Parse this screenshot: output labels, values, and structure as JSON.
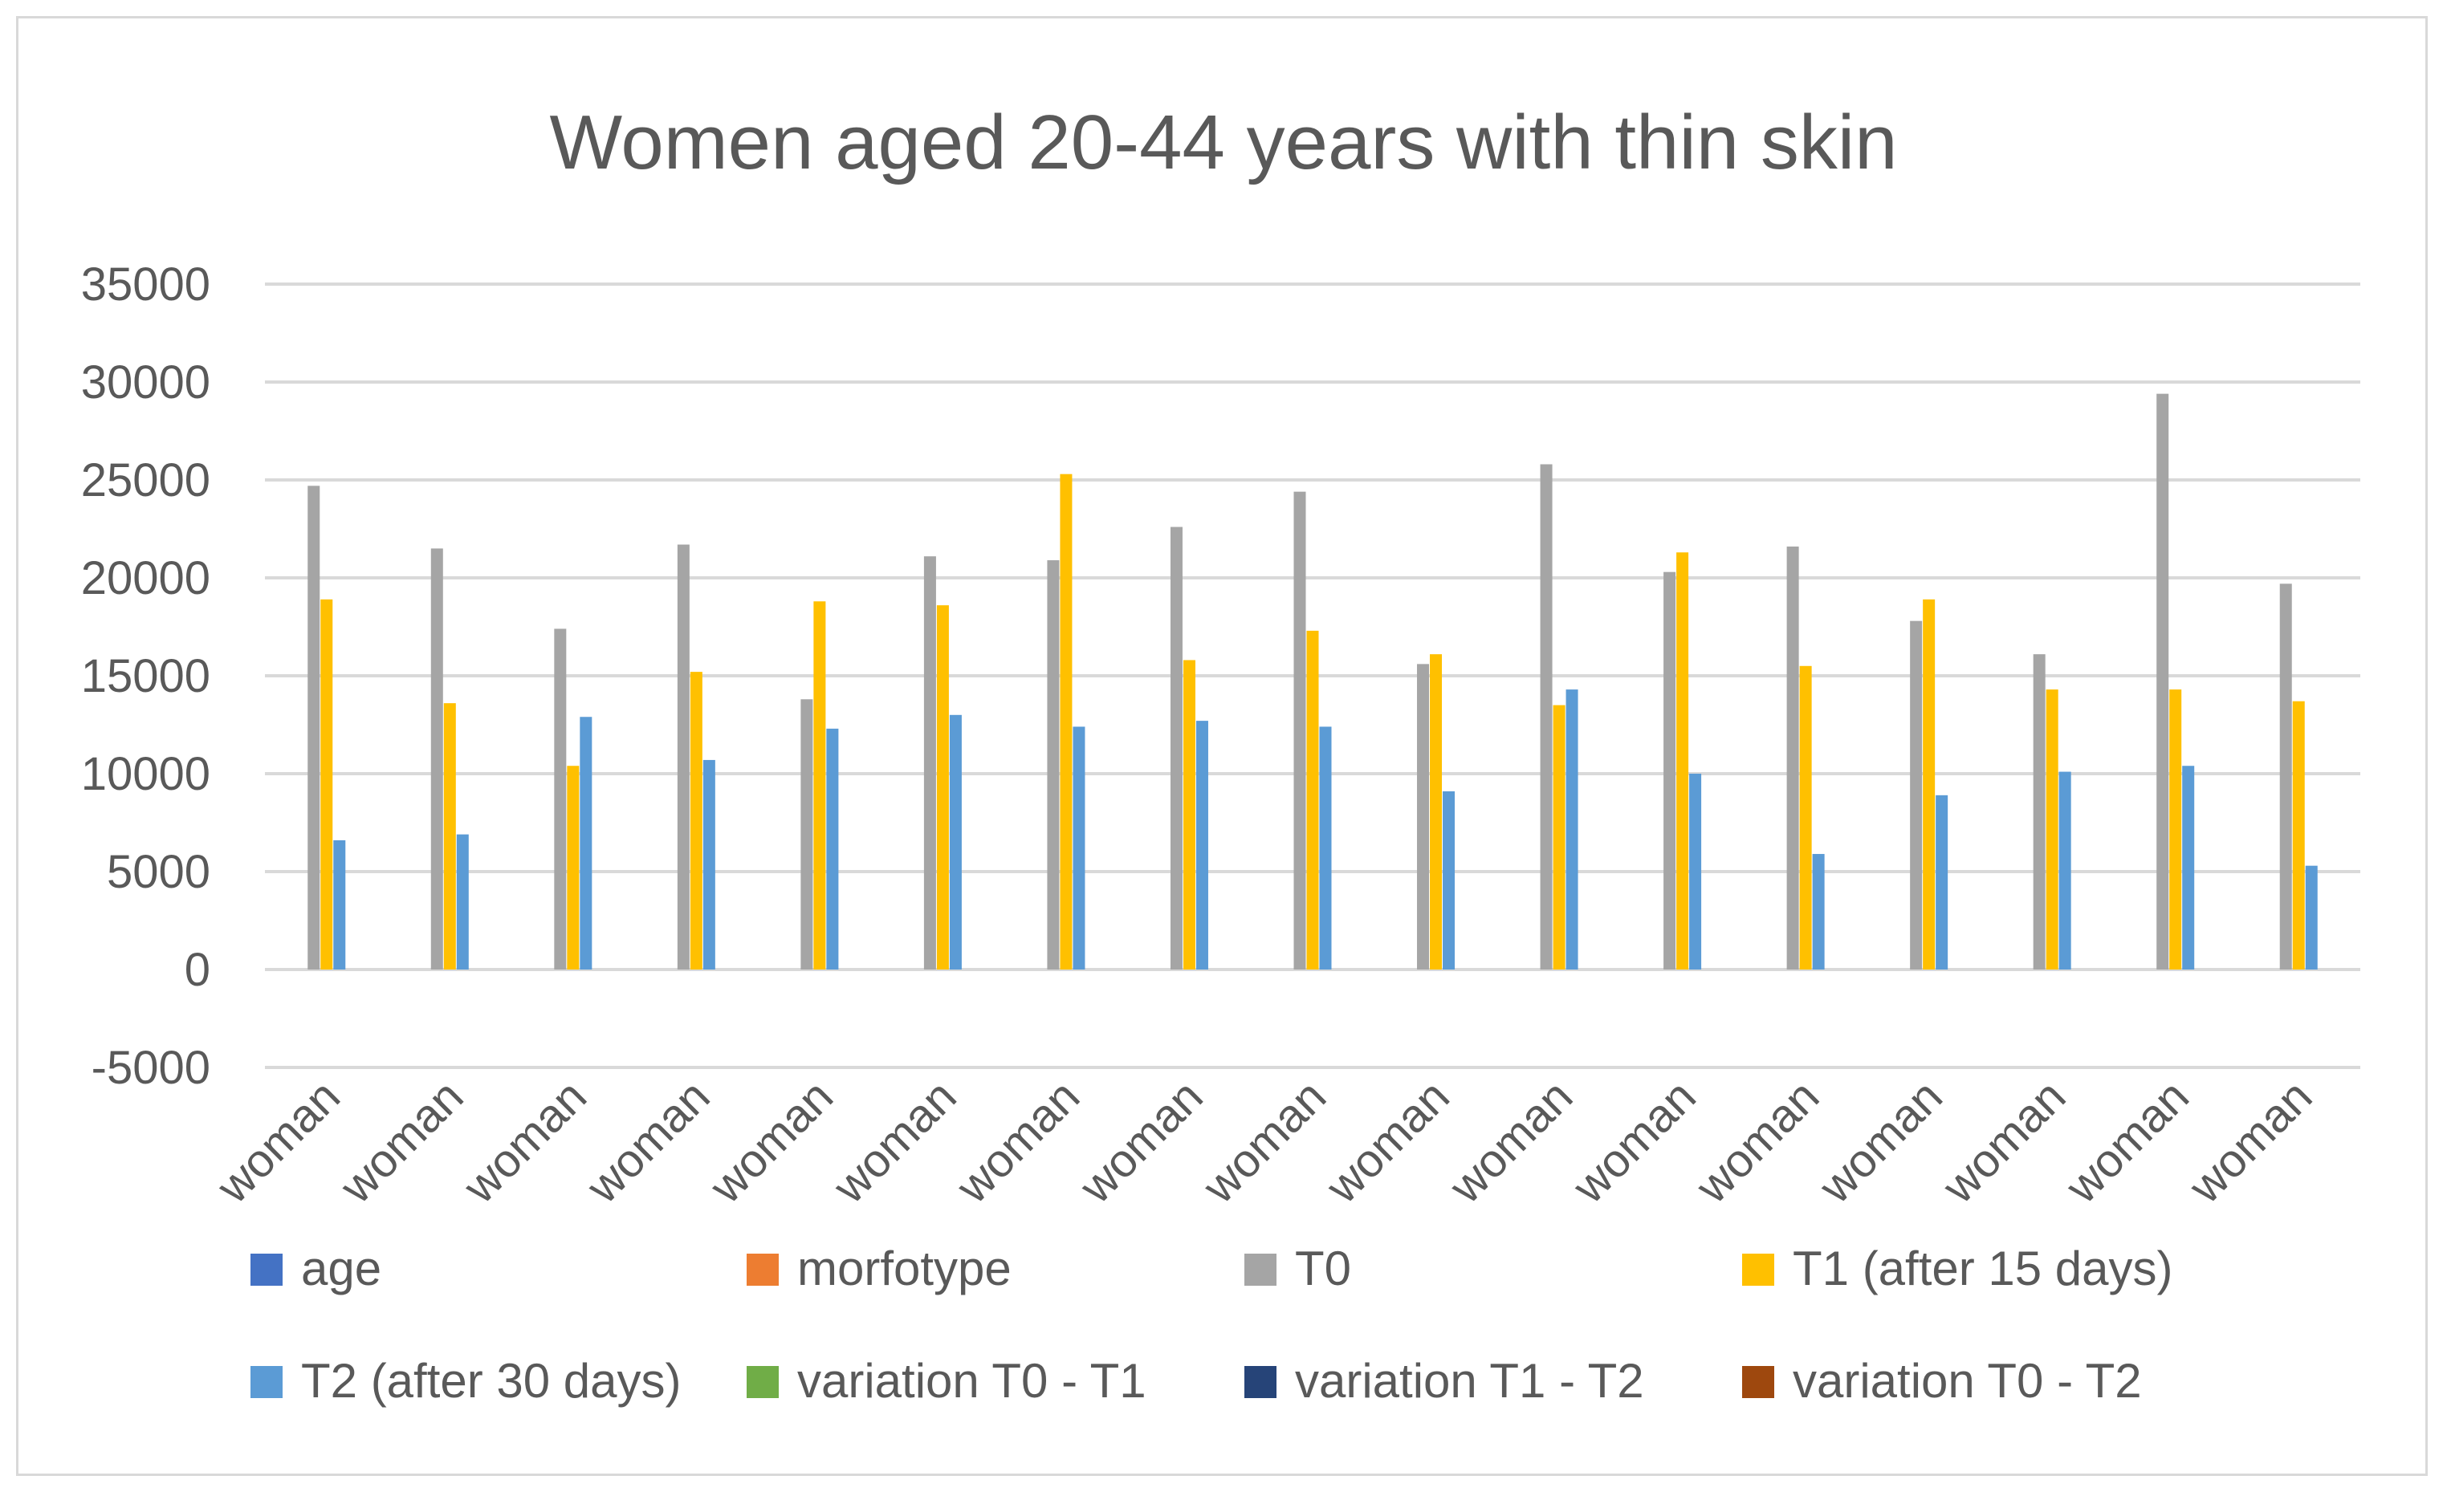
{
  "chart_data": {
    "type": "bar",
    "title": "Women aged 20-44 years with thin skin",
    "xlabel": "",
    "ylabel": "",
    "ylim": [
      -5000,
      35000
    ],
    "yticks": [
      35000,
      30000,
      25000,
      20000,
      15000,
      10000,
      5000,
      0,
      -5000
    ],
    "grid": true,
    "legend_position": "bottom",
    "categories": [
      "woman",
      "woman",
      "woman",
      "woman",
      "woman",
      "woman",
      "woman",
      "woman",
      "woman",
      "woman",
      "woman",
      "woman",
      "woman",
      "woman",
      "woman",
      "woman",
      "woman"
    ],
    "series": [
      {
        "name": "age",
        "color": "#4472C4",
        "values": [
          0,
          0,
          0,
          0,
          0,
          0,
          0,
          0,
          0,
          0,
          0,
          0,
          0,
          0,
          0,
          0,
          0
        ]
      },
      {
        "name": "morfotype",
        "color": "#ED7D31",
        "values": [
          0,
          0,
          0,
          0,
          0,
          0,
          0,
          0,
          0,
          0,
          0,
          0,
          0,
          0,
          0,
          0,
          0
        ]
      },
      {
        "name": "T0",
        "color": "#A5A5A5",
        "values": [
          24700,
          21500,
          17400,
          21700,
          13800,
          21100,
          20900,
          22600,
          24400,
          15600,
          25800,
          20300,
          21600,
          17800,
          16100,
          29400,
          19700
        ]
      },
      {
        "name": "T1 (after 15 days)",
        "color": "#FFC000",
        "values": [
          18900,
          13600,
          10400,
          15200,
          18800,
          18600,
          25300,
          15800,
          17300,
          16100,
          13500,
          21300,
          15500,
          18900,
          14300,
          14300,
          13700
        ]
      },
      {
        "name": "T2 (after 30 days)",
        "color": "#5B9BD5",
        "values": [
          6600,
          6900,
          12900,
          10700,
          12300,
          13000,
          12400,
          12700,
          12400,
          9100,
          14300,
          10000,
          5900,
          8900,
          10100,
          10400,
          5300
        ]
      },
      {
        "name": "variation T0 - T1",
        "color": "#70AD47",
        "values": [
          0,
          0,
          0,
          0,
          0,
          0,
          0,
          0,
          0,
          0,
          0,
          0,
          0,
          0,
          0,
          0,
          0
        ]
      },
      {
        "name": "variation T1 - T2",
        "color": "#264478",
        "values": [
          0,
          0,
          0,
          0,
          0,
          0,
          0,
          0,
          0,
          0,
          0,
          0,
          0,
          0,
          0,
          0,
          0
        ]
      },
      {
        "name": "variation T0 - T2",
        "color": "#9E480E",
        "values": [
          0,
          0,
          0,
          0,
          0,
          0,
          0,
          0,
          0,
          0,
          0,
          0,
          0,
          0,
          0,
          0,
          0
        ]
      }
    ]
  }
}
